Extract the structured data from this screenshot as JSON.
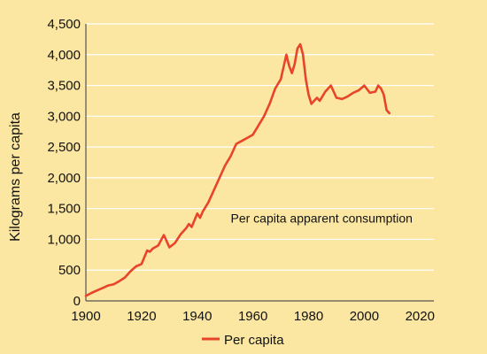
{
  "chart_data": {
    "type": "line",
    "title": "",
    "xlabel": "",
    "ylabel": "Kilograms per capita",
    "xlim": [
      1900,
      2025
    ],
    "ylim": [
      0,
      4500
    ],
    "x_ticks": [
      1900,
      1920,
      1940,
      1960,
      1980,
      2000,
      2020
    ],
    "x_tick_labels": [
      "1900",
      "1920",
      "1940",
      "1960",
      "1980",
      "2000",
      "2020"
    ],
    "y_ticks": [
      0,
      500,
      1000,
      1500,
      2000,
      2500,
      3000,
      3500,
      4000,
      4500
    ],
    "y_tick_labels": [
      "0",
      "500",
      "1,000",
      "1,500",
      "2,000",
      "2,500",
      "3,000",
      "3,500",
      "4,000",
      "4,500"
    ],
    "grid": "horizontal",
    "background_color": "#fbe7a1",
    "grid_color": "#ffffff",
    "line_color": "#e8442a",
    "annotation": {
      "text": "Per capita apparent consumption",
      "x": 1959,
      "y": 1270
    },
    "legend": {
      "placement": "bottom-center"
    },
    "series": [
      {
        "name": "Per capita",
        "x": [
          1900,
          1902,
          1904,
          1906,
          1908,
          1910,
          1912,
          1914,
          1916,
          1918,
          1920,
          1922,
          1923,
          1924,
          1926,
          1928,
          1929,
          1930,
          1932,
          1934,
          1936,
          1937,
          1938,
          1940,
          1941,
          1942,
          1944,
          1946,
          1948,
          1950,
          1952,
          1954,
          1956,
          1958,
          1960,
          1962,
          1964,
          1966,
          1968,
          1970,
          1972,
          1973,
          1974,
          1975,
          1976,
          1977,
          1978,
          1979,
          1980,
          1981,
          1982,
          1983,
          1984,
          1986,
          1988,
          1990,
          1992,
          1994,
          1996,
          1998,
          2000,
          2002,
          2004,
          2005,
          2006,
          2007,
          2008,
          2009
        ],
        "values": [
          80,
          130,
          170,
          210,
          250,
          270,
          320,
          380,
          480,
          560,
          600,
          820,
          800,
          850,
          900,
          1070,
          970,
          870,
          940,
          1080,
          1180,
          1250,
          1200,
          1420,
          1350,
          1450,
          1600,
          1800,
          2000,
          2200,
          2350,
          2550,
          2600,
          2650,
          2700,
          2850,
          3000,
          3200,
          3450,
          3600,
          4000,
          3820,
          3700,
          3850,
          4100,
          4170,
          4000,
          3600,
          3350,
          3200,
          3250,
          3300,
          3250,
          3400,
          3500,
          3300,
          3280,
          3320,
          3380,
          3420,
          3500,
          3380,
          3400,
          3500,
          3450,
          3350,
          3100,
          3050
        ]
      }
    ]
  }
}
